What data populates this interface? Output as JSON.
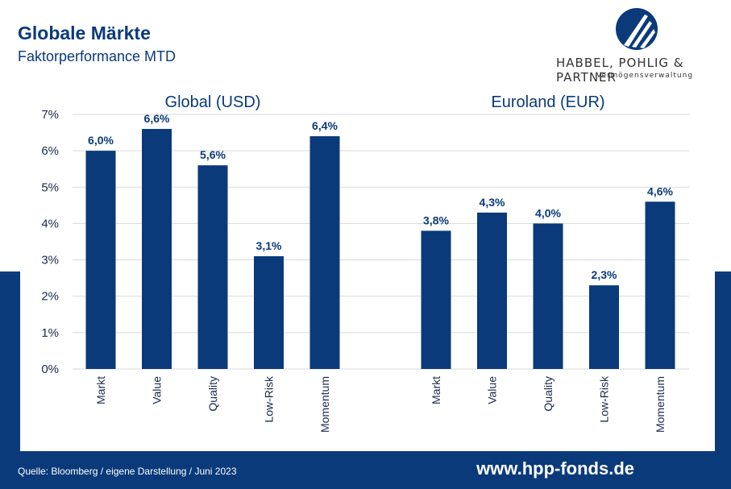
{
  "header": {
    "title": "Globale Märkte",
    "subtitle": "Faktorperformance MTD"
  },
  "logo": {
    "name": "HABBEL, POHLIG & PARTNER",
    "tagline": "Vermögensverwaltung"
  },
  "footer": {
    "source": "Quelle: Bloomberg / eigene Darstellung / Juni 2023",
    "website": "www.hpp-fonds.de"
  },
  "colors": {
    "brand": "#0a3a7a",
    "bar": "#0a3a7a",
    "grid": "#d9d9d9"
  },
  "chart_data": {
    "type": "bar",
    "y_tick_labels": [
      "0%",
      "1%",
      "2%",
      "3%",
      "4%",
      "5%",
      "6%",
      "7%"
    ],
    "ylim": [
      0,
      7
    ],
    "grid": true,
    "panels": [
      {
        "title": "Global (USD)",
        "categories": [
          "Markt",
          "Value",
          "Quality",
          "Low-Risk",
          "Momentum"
        ],
        "values": [
          6.0,
          6.6,
          5.6,
          3.1,
          6.4
        ],
        "value_labels": [
          "6,0%",
          "6,6%",
          "5,6%",
          "3,1%",
          "6,4%"
        ]
      },
      {
        "title": "Euroland (EUR)",
        "categories": [
          "Markt",
          "Value",
          "Quality",
          "Low-Risk",
          "Momentum"
        ],
        "values": [
          3.8,
          4.3,
          4.0,
          2.3,
          4.6
        ],
        "value_labels": [
          "3,8%",
          "4,3%",
          "4,0%",
          "2,3%",
          "4,6%"
        ]
      }
    ]
  }
}
